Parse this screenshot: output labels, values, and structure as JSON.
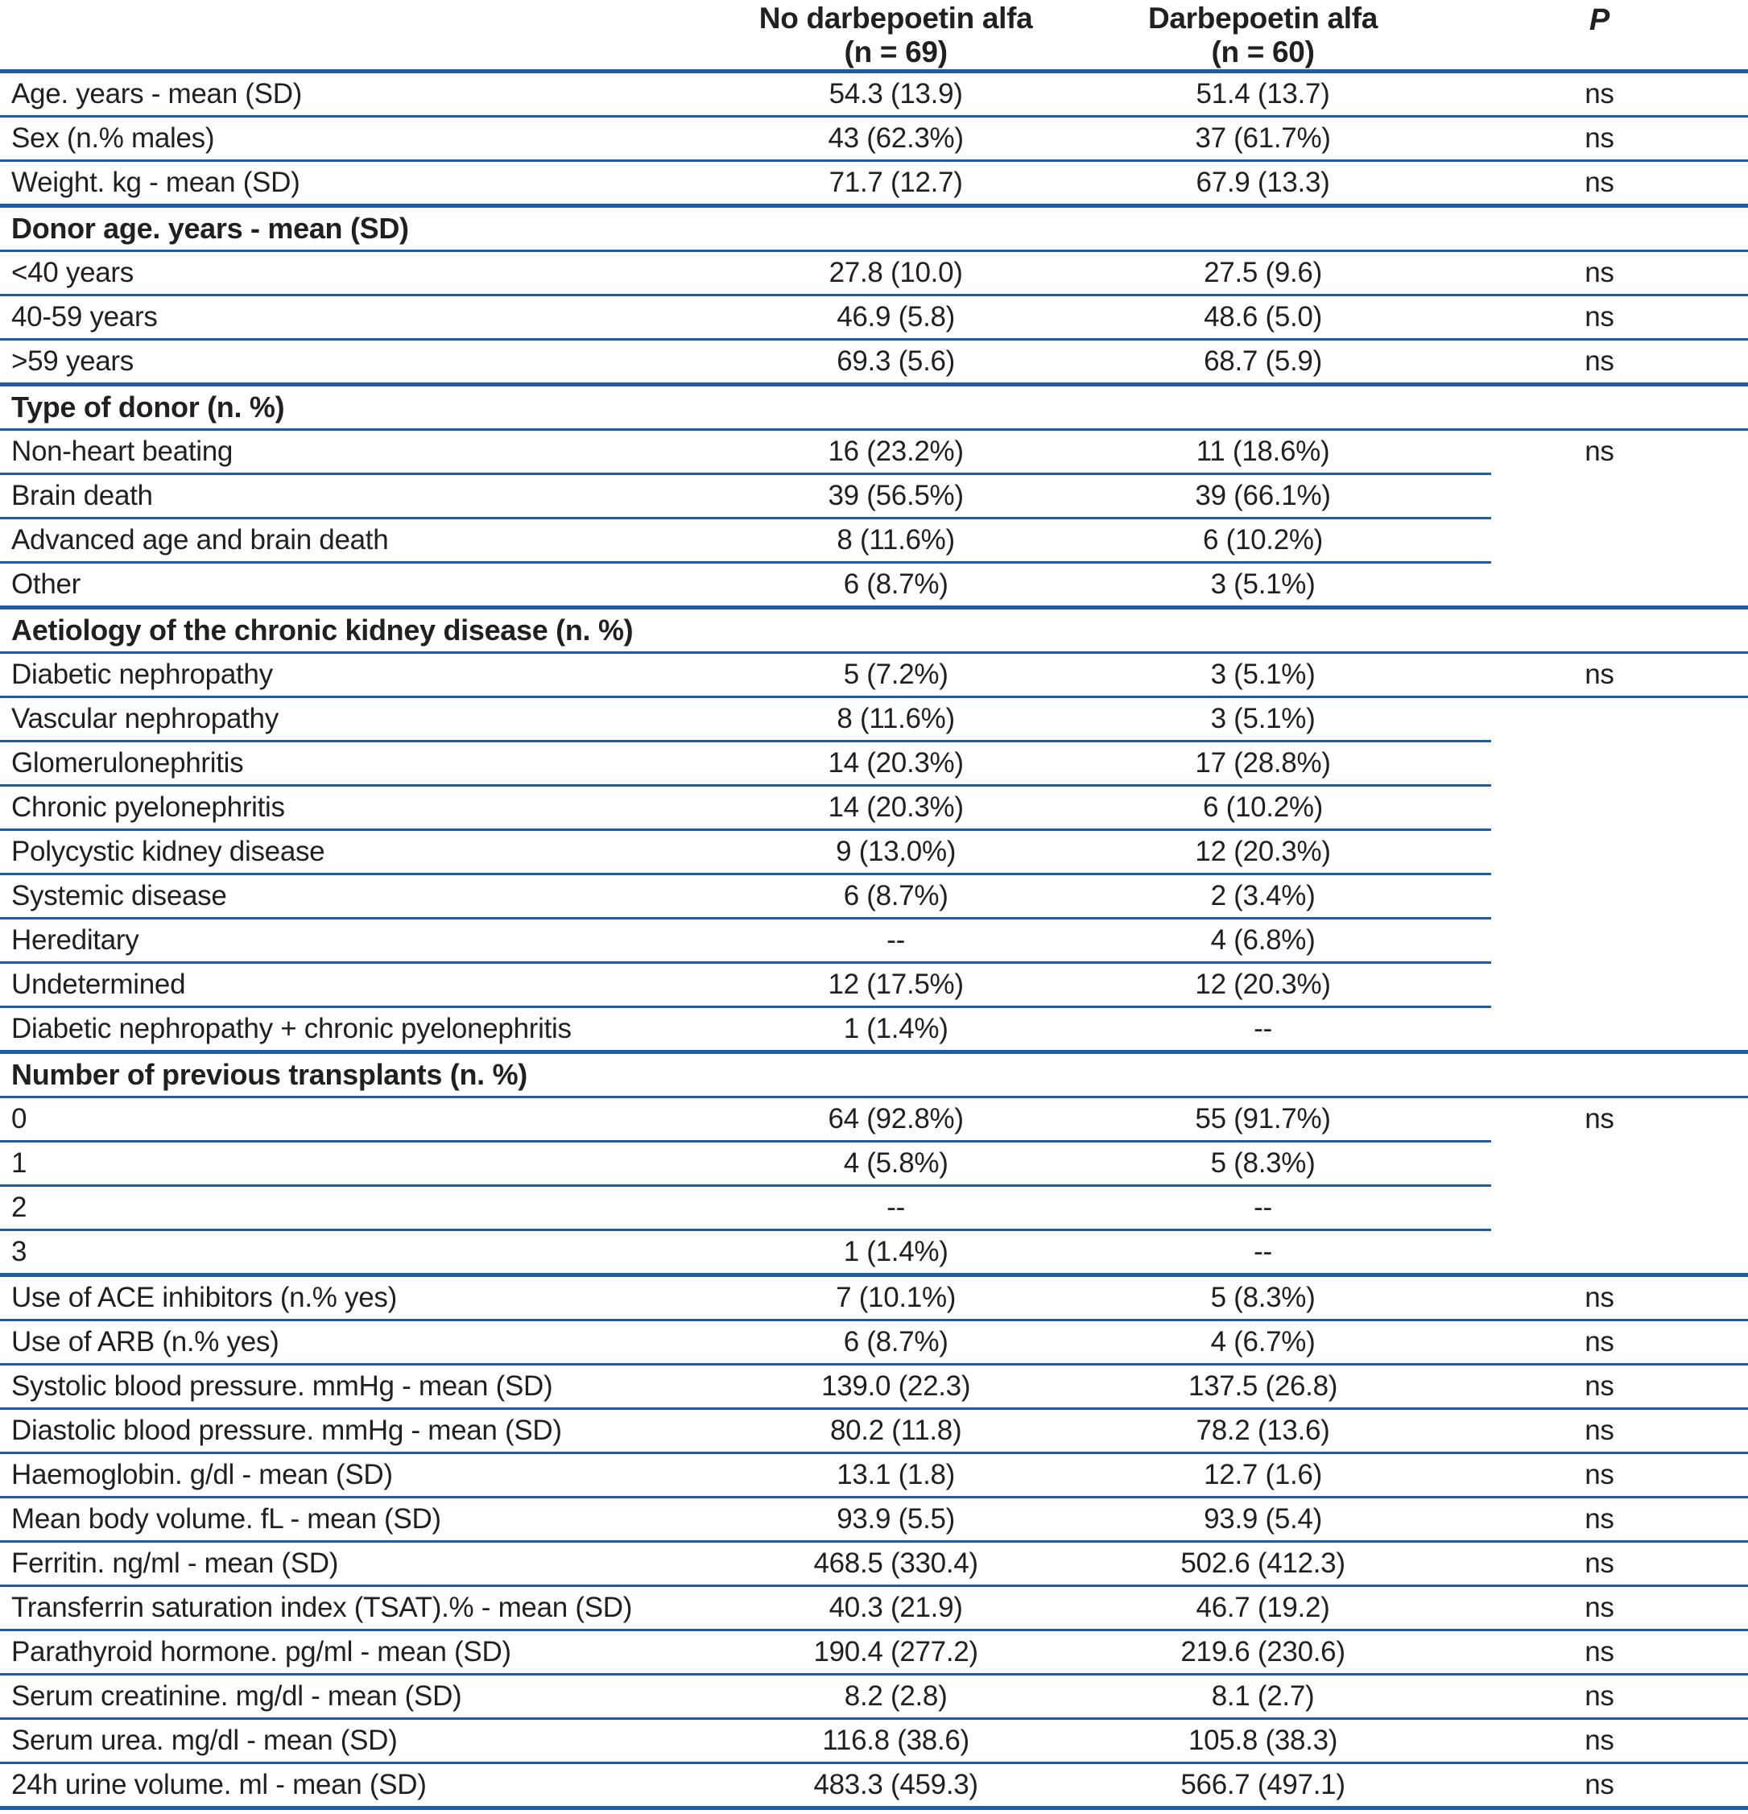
{
  "table": {
    "text_color": "#221f20",
    "line_color": "#1e5ca8",
    "header": {
      "col1_line1": "No darbepoetin alfa",
      "col1_line2": "(n = 69)",
      "col2_line1": "Darbepoetin alfa",
      "col2_line2": "(n = 60)",
      "p": "P"
    },
    "rows": [
      {
        "label": "Age. years - mean (SD)",
        "v1": "54.3 (13.9)",
        "v2": "51.4 (13.7)",
        "p": "ns",
        "sep": "full",
        "thick": false,
        "section": false
      },
      {
        "label": "Sex (n.% males)",
        "v1": "43 (62.3%)",
        "v2": "37 (61.7%)",
        "p": "ns",
        "sep": "full",
        "thick": false,
        "section": false
      },
      {
        "label": "Weight. kg - mean (SD)",
        "v1": "71.7 (12.7)",
        "v2": "67.9 (13.3)",
        "p": "ns",
        "sep": "full",
        "thick": true,
        "section": false
      },
      {
        "label": "Donor age. years - mean (SD)",
        "v1": "",
        "v2": "",
        "p": "",
        "sep": "full",
        "thick": false,
        "section": true
      },
      {
        "label": "<40 years",
        "v1": "27.8 (10.0)",
        "v2": "27.5 (9.6)",
        "p": "ns",
        "sep": "full",
        "thick": false,
        "section": false
      },
      {
        "label": "40-59 years",
        "v1": "46.9 (5.8)",
        "v2": "48.6 (5.0)",
        "p": "ns",
        "sep": "full",
        "thick": false,
        "section": false
      },
      {
        "label": ">59 years",
        "v1": "69.3 (5.6)",
        "v2": "68.7 (5.9)",
        "p": "ns",
        "sep": "full",
        "thick": true,
        "section": false
      },
      {
        "label": "Type of donor (n. %)",
        "v1": "",
        "v2": "",
        "p": "",
        "sep": "full",
        "thick": false,
        "section": true
      },
      {
        "label": "Non-heart beating",
        "v1": "16 (23.2%)",
        "v2": "11 (18.6%)",
        "p": "ns",
        "sep": "short",
        "thick": false,
        "section": false
      },
      {
        "label": "Brain death",
        "v1": "39 (56.5%)",
        "v2": "39 (66.1%)",
        "p": "",
        "sep": "short",
        "thick": false,
        "section": false
      },
      {
        "label": "Advanced age and brain death",
        "v1": "8 (11.6%)",
        "v2": "6 (10.2%)",
        "p": "",
        "sep": "short",
        "thick": false,
        "section": false
      },
      {
        "label": "Other",
        "v1": "6 (8.7%)",
        "v2": "3 (5.1%)",
        "p": "",
        "sep": "full",
        "thick": true,
        "section": false
      },
      {
        "label": "Aetiology of the chronic kidney disease (n. %)",
        "v1": "",
        "v2": "",
        "p": "",
        "sep": "full",
        "thick": false,
        "section": true
      },
      {
        "label": "Diabetic nephropathy",
        "v1": "5 (7.2%)",
        "v2": "3 (5.1%)",
        "p": "ns",
        "sep": "full",
        "thick": false,
        "section": false
      },
      {
        "label": "Vascular nephropathy",
        "v1": "8 (11.6%)",
        "v2": "3 (5.1%)",
        "p": "",
        "sep": "short",
        "thick": false,
        "section": false
      },
      {
        "label": "Glomerulonephritis",
        "v1": "14 (20.3%)",
        "v2": "17 (28.8%)",
        "p": "",
        "sep": "short",
        "thick": false,
        "section": false
      },
      {
        "label": "Chronic pyelonephritis",
        "v1": "14 (20.3%)",
        "v2": "6 (10.2%)",
        "p": "",
        "sep": "short",
        "thick": false,
        "section": false
      },
      {
        "label": "Polycystic kidney disease",
        "v1": "9 (13.0%)",
        "v2": "12 (20.3%)",
        "p": "",
        "sep": "short",
        "thick": false,
        "section": false
      },
      {
        "label": "Systemic disease",
        "v1": "6 (8.7%)",
        "v2": "2 (3.4%)",
        "p": "",
        "sep": "short",
        "thick": false,
        "section": false
      },
      {
        "label": "Hereditary",
        "v1": "--",
        "v2": "4 (6.8%)",
        "p": "",
        "sep": "short",
        "thick": false,
        "section": false
      },
      {
        "label": "Undetermined",
        "v1": "12 (17.5%)",
        "v2": "12 (20.3%)",
        "p": "",
        "sep": "short",
        "thick": false,
        "section": false
      },
      {
        "label": "Diabetic nephropathy + chronic pyelonephritis",
        "v1": "1 (1.4%)",
        "v2": "--",
        "p": "",
        "sep": "full",
        "thick": true,
        "section": false
      },
      {
        "label": "Number of previous transplants (n. %)",
        "v1": "",
        "v2": "",
        "p": "",
        "sep": "full",
        "thick": false,
        "section": true
      },
      {
        "label": "0",
        "v1": "64 (92.8%)",
        "v2": "55 (91.7%)",
        "p": "ns",
        "sep": "short",
        "thick": false,
        "section": false
      },
      {
        "label": "1",
        "v1": "4 (5.8%)",
        "v2": "5 (8.3%)",
        "p": "",
        "sep": "short",
        "thick": false,
        "section": false
      },
      {
        "label": "2",
        "v1": "--",
        "v2": "--",
        "p": "",
        "sep": "short",
        "thick": false,
        "section": false
      },
      {
        "label": "3",
        "v1": "1 (1.4%)",
        "v2": "--",
        "p": "",
        "sep": "full",
        "thick": true,
        "section": false
      },
      {
        "label": "Use of ACE inhibitors (n.% yes)",
        "v1": "7 (10.1%)",
        "v2": "5 (8.3%)",
        "p": "ns",
        "sep": "full",
        "thick": false,
        "section": false
      },
      {
        "label": "Use of ARB (n.% yes)",
        "v1": "6 (8.7%)",
        "v2": "4 (6.7%)",
        "p": "ns",
        "sep": "full",
        "thick": false,
        "section": false
      },
      {
        "label": "Systolic blood pressure. mmHg - mean (SD)",
        "v1": "139.0 (22.3)",
        "v2": "137.5 (26.8)",
        "p": "ns",
        "sep": "full",
        "thick": false,
        "section": false
      },
      {
        "label": "Diastolic blood pressure. mmHg - mean (SD)",
        "v1": "80.2 (11.8)",
        "v2": "78.2 (13.6)",
        "p": "ns",
        "sep": "full",
        "thick": false,
        "section": false
      },
      {
        "label": "Haemoglobin. g/dl - mean (SD)",
        "v1": "13.1 (1.8)",
        "v2": "12.7 (1.6)",
        "p": "ns",
        "sep": "full",
        "thick": false,
        "section": false
      },
      {
        "label": "Mean body volume. fL - mean (SD)",
        "v1": "93.9 (5.5)",
        "v2": "93.9 (5.4)",
        "p": "ns",
        "sep": "full",
        "thick": false,
        "section": false
      },
      {
        "label": "Ferritin. ng/ml - mean (SD)",
        "v1": "468.5 (330.4)",
        "v2": "502.6 (412.3)",
        "p": "ns",
        "sep": "full",
        "thick": false,
        "section": false
      },
      {
        "label": "Transferrin saturation index (TSAT).% - mean (SD)",
        "v1": "40.3 (21.9)",
        "v2": "46.7 (19.2)",
        "p": "ns",
        "sep": "full",
        "thick": false,
        "section": false
      },
      {
        "label": "Parathyroid hormone. pg/ml - mean (SD)",
        "v1": "190.4 (277.2)",
        "v2": "219.6 (230.6)",
        "p": "ns",
        "sep": "full",
        "thick": false,
        "section": false
      },
      {
        "label": "Serum creatinine. mg/dl - mean (SD)",
        "v1": "8.2 (2.8)",
        "v2": "8.1 (2.7)",
        "p": "ns",
        "sep": "full",
        "thick": false,
        "section": false
      },
      {
        "label": "Serum urea. mg/dl - mean (SD)",
        "v1": "116.8 (38.6)",
        "v2": "105.8 (38.3)",
        "p": "ns",
        "sep": "full",
        "thick": false,
        "section": false
      },
      {
        "label": "24h urine volume. ml - mean (SD)",
        "v1": "483.3 (459.3)",
        "v2": "566.7 (497.1)",
        "p": "ns",
        "sep": "full",
        "thick": true,
        "section": false
      }
    ]
  }
}
